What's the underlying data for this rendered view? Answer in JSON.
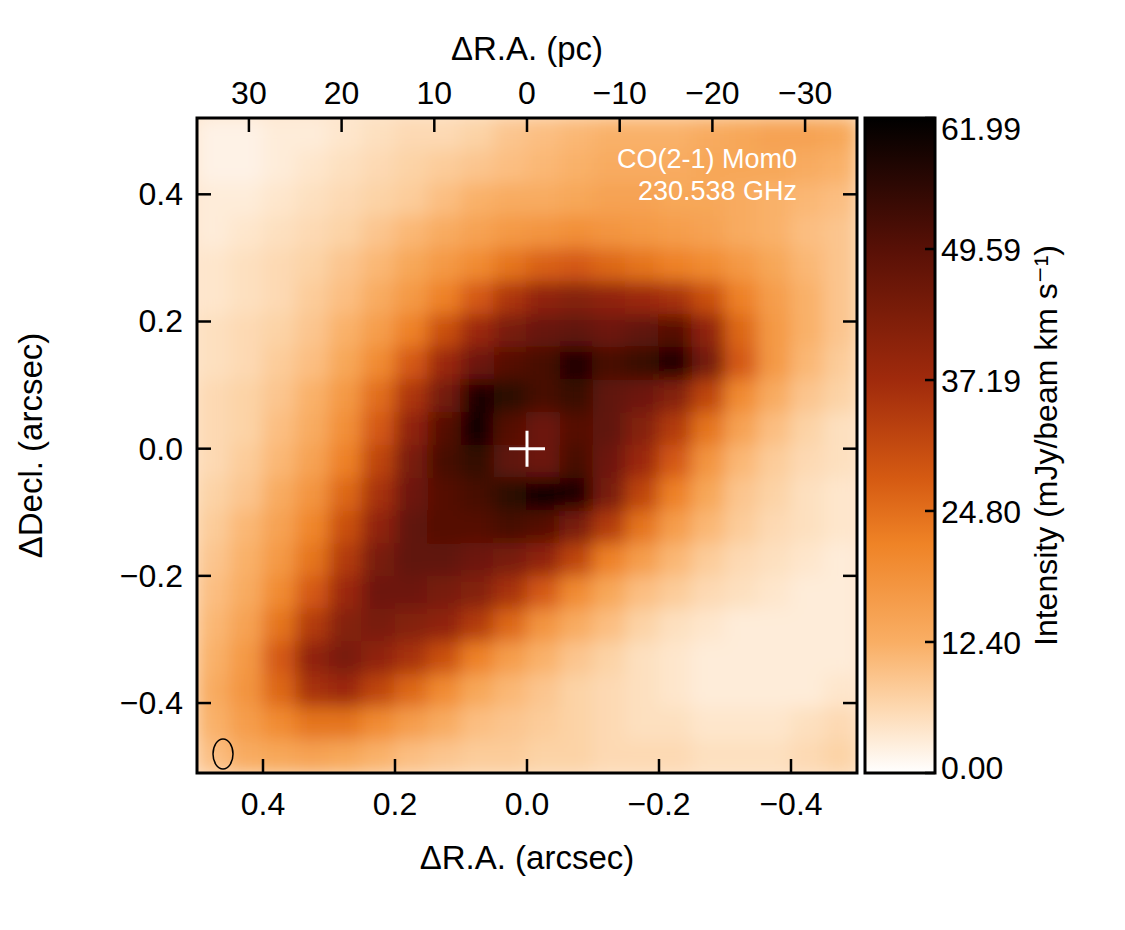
{
  "chart_data": {
    "type": "heatmap",
    "annotations": [
      "CO(2-1) Mom0",
      "230.538 GHz"
    ],
    "x_label": "ΔR.A. (arcsec)",
    "y_label": "ΔDecl. (arcsec)",
    "x2_label": "ΔR.A. (pc)",
    "xlim": [
      0.5,
      -0.5
    ],
    "ylim": [
      -0.51,
      0.52
    ],
    "x2lim": [
      35.6,
      -35.6
    ],
    "xticks": [
      0.4,
      0.2,
      {
        "value": 0,
        "label": "0.0"
      },
      {
        "value": -0.2,
        "label": "−0.2"
      },
      {
        "value": -0.4,
        "label": "−0.4"
      }
    ],
    "yticks": [
      {
        "value": -0.4,
        "label": "−0.4"
      },
      {
        "value": -0.2,
        "label": "−0.2"
      },
      {
        "value": 0,
        "label": "0.0"
      },
      0.2,
      0.4
    ],
    "x2ticks": [
      30,
      20,
      10,
      0,
      {
        "value": -10,
        "label": "−10"
      },
      {
        "value": -20,
        "label": "−20"
      },
      {
        "value": -30,
        "label": "−30"
      }
    ],
    "colorbar_label": "Intensity (mJy/beam km s⁻¹)",
    "colorbar_lim": [
      0,
      61.99
    ],
    "colorbar_ticks": [
      {
        "value": 0,
        "label": "0.00"
      },
      {
        "value": 12.4,
        "label": "12.40"
      },
      {
        "value": 24.8,
        "label": "24.80"
      },
      37.19,
      49.59,
      61.99
    ],
    "cross": {
      "x": 0,
      "y": 0
    },
    "x": [
      0.475,
      0.425,
      0.375,
      0.325,
      0.275,
      0.225,
      0.175,
      0.125,
      0.075,
      0.025,
      -0.025,
      -0.075,
      -0.125,
      -0.175,
      -0.225,
      -0.275,
      -0.325,
      -0.375,
      -0.425,
      -0.475
    ],
    "y": [
      0.494,
      0.443,
      0.391,
      0.34,
      0.288,
      0.237,
      0.185,
      0.134,
      0.082,
      0.031,
      -0.021,
      -0.072,
      -0.124,
      -0.175,
      -0.227,
      -0.278,
      -0.33,
      -0.381,
      -0.433,
      -0.484
    ],
    "cells": [
      [
        2,
        2,
        3,
        3,
        4,
        5,
        6,
        6,
        7,
        9,
        10,
        11,
        12,
        12,
        12,
        13,
        14,
        15,
        15,
        14
      ],
      [
        2,
        2,
        3,
        4,
        5,
        6,
        7,
        8,
        9,
        10,
        11,
        12,
        13,
        13,
        13,
        14,
        14,
        14,
        13,
        12
      ],
      [
        3,
        3,
        4,
        5,
        6,
        7,
        8,
        10,
        12,
        13,
        13,
        14,
        15,
        15,
        14,
        14,
        13,
        12,
        11,
        10
      ],
      [
        3,
        4,
        5,
        6,
        7,
        9,
        11,
        13,
        15,
        17,
        18,
        19,
        18,
        17,
        16,
        15,
        13,
        12,
        10,
        9
      ],
      [
        4,
        5,
        6,
        7,
        9,
        11,
        14,
        17,
        20,
        24,
        27,
        28,
        26,
        24,
        22,
        20,
        17,
        14,
        11,
        9
      ],
      [
        4,
        5,
        6,
        8,
        10,
        13,
        17,
        22,
        28,
        35,
        40,
        42,
        40,
        38,
        36,
        30,
        22,
        16,
        12,
        9
      ],
      [
        5,
        6,
        7,
        9,
        12,
        16,
        22,
        30,
        38,
        44,
        47,
        48,
        46,
        48,
        50,
        40,
        26,
        17,
        12,
        9
      ],
      [
        5,
        6,
        8,
        10,
        14,
        20,
        28,
        38,
        46,
        50,
        52,
        58,
        52,
        54,
        58,
        45,
        28,
        17,
        11,
        8
      ],
      [
        6,
        7,
        9,
        12,
        17,
        25,
        35,
        45,
        58,
        56,
        52,
        54,
        48,
        46,
        42,
        32,
        20,
        13,
        9,
        7
      ],
      [
        6,
        7,
        10,
        13,
        19,
        28,
        40,
        50,
        60,
        50,
        46,
        50,
        48,
        42,
        34,
        24,
        15,
        10,
        7,
        5
      ],
      [
        6,
        8,
        11,
        15,
        22,
        32,
        44,
        52,
        55,
        48,
        46,
        52,
        46,
        38,
        28,
        18,
        11,
        8,
        6,
        5
      ],
      [
        7,
        9,
        13,
        18,
        26,
        36,
        46,
        50,
        52,
        56,
        60,
        58,
        44,
        32,
        22,
        14,
        9,
        7,
        5,
        4
      ],
      [
        8,
        11,
        15,
        21,
        30,
        40,
        48,
        50,
        50,
        52,
        50,
        44,
        34,
        24,
        16,
        11,
        8,
        6,
        5,
        4
      ],
      [
        9,
        12,
        17,
        24,
        34,
        44,
        48,
        48,
        46,
        44,
        40,
        32,
        22,
        16,
        11,
        8,
        6,
        5,
        4,
        3
      ],
      [
        10,
        13,
        20,
        28,
        38,
        46,
        46,
        44,
        42,
        36,
        28,
        20,
        14,
        10,
        8,
        6,
        5,
        4,
        3,
        3
      ],
      [
        11,
        15,
        24,
        34,
        42,
        44,
        42,
        40,
        34,
        26,
        18,
        13,
        10,
        7,
        5,
        4,
        3,
        3,
        3,
        3
      ],
      [
        12,
        17,
        28,
        40,
        44,
        40,
        36,
        30,
        22,
        16,
        12,
        9,
        7,
        5,
        4,
        3,
        3,
        3,
        3,
        3
      ],
      [
        13,
        18,
        26,
        36,
        38,
        32,
        26,
        20,
        14,
        11,
        9,
        7,
        6,
        5,
        4,
        3,
        3,
        3,
        3,
        4
      ],
      [
        12,
        16,
        20,
        24,
        24,
        20,
        16,
        13,
        10,
        9,
        8,
        7,
        6,
        5,
        5,
        4,
        4,
        4,
        5,
        6
      ],
      [
        10,
        13,
        14,
        15,
        14,
        12,
        10,
        9,
        8,
        8,
        7,
        7,
        6,
        6,
        6,
        5,
        5,
        5,
        6,
        7
      ]
    ]
  }
}
